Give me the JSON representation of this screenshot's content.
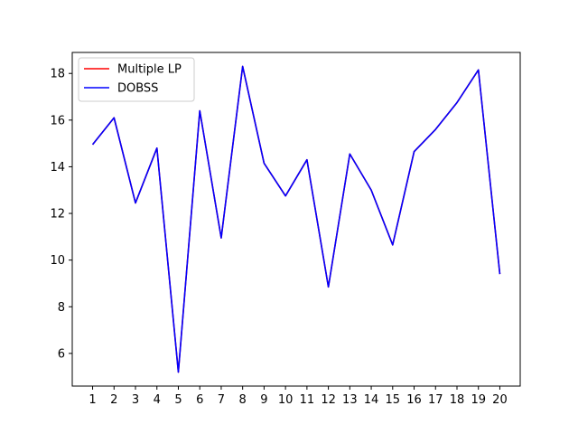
{
  "chart_data": {
    "type": "line",
    "title": "",
    "xlabel": "",
    "ylabel": "",
    "x": [
      1,
      2,
      3,
      4,
      5,
      6,
      7,
      8,
      9,
      10,
      11,
      12,
      13,
      14,
      15,
      16,
      17,
      18,
      19,
      20
    ],
    "xlim": [
      0.05,
      20.95
    ],
    "ylim": [
      4.6,
      18.9
    ],
    "yticks": [
      6,
      8,
      10,
      12,
      14,
      16,
      18
    ],
    "grid": false,
    "legend_position": "top-left",
    "series": [
      {
        "name": "Multiple LP",
        "color": "#ff0000",
        "values": [
          14.95,
          16.1,
          12.45,
          14.8,
          5.2,
          16.4,
          10.95,
          18.3,
          14.15,
          12.75,
          14.3,
          8.85,
          14.55,
          13.0,
          10.65,
          14.65,
          15.6,
          16.75,
          18.15,
          9.4
        ]
      },
      {
        "name": "DOBSS",
        "color": "#0000ff",
        "values": [
          14.95,
          16.1,
          12.45,
          14.8,
          5.2,
          16.4,
          10.95,
          18.3,
          14.15,
          12.75,
          14.3,
          8.85,
          14.55,
          13.0,
          10.65,
          14.65,
          15.6,
          16.75,
          18.15,
          9.4
        ]
      }
    ]
  }
}
